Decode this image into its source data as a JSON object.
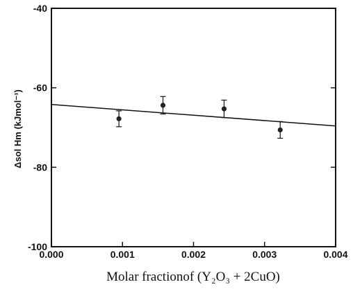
{
  "chart_data": {
    "type": "scatter",
    "title": "",
    "xlabel": "Molar fractionof (Y₂O₃ + 2CuO)",
    "ylabel": "Δsol Hm (kJmol⁻¹)",
    "xlim": [
      0.0,
      0.004
    ],
    "ylim": [
      -100,
      -40
    ],
    "x_ticks": [
      "0.000",
      "0.001",
      "0.002",
      "0.003",
      "0.004"
    ],
    "y_ticks": [
      "-40",
      "-60",
      "-80",
      "-100"
    ],
    "grid": false,
    "legend": "none",
    "series": [
      {
        "x": [
          0.00095,
          0.00157,
          0.00243,
          0.00322
        ],
        "y": [
          -67.8,
          -64.4,
          -65.3,
          -70.6
        ],
        "yerr": [
          2.0,
          2.2,
          2.2,
          2.1
        ]
      }
    ],
    "fit_line": {
      "x": [
        0.0,
        0.004
      ],
      "y": [
        -64.2,
        -69.6
      ]
    }
  }
}
